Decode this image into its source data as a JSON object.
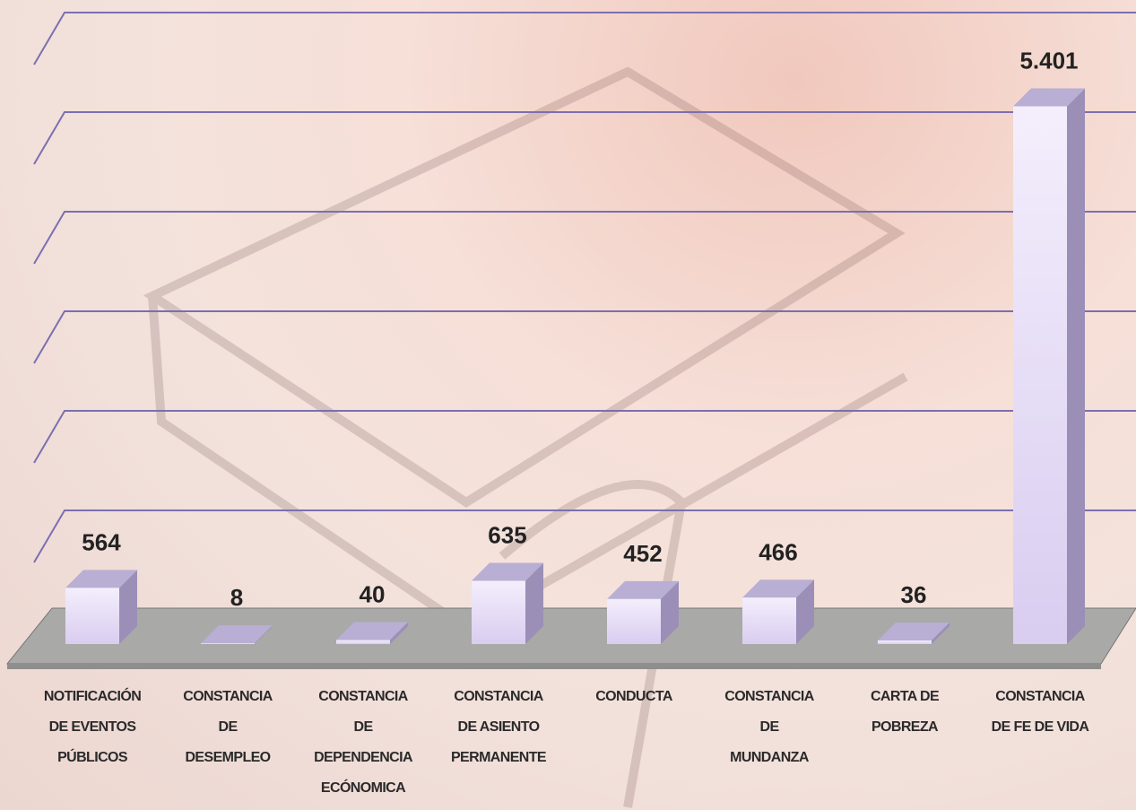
{
  "chart_data": {
    "type": "bar3d",
    "categories": [
      "NOTIFICACIÓN\nDE EVENTOS\nPÚBLICOS",
      "CONSTANCIA\nDE\nDESEMPLEO",
      "CONSTANCIA\nDE\nDEPENDENCIA\nECÓNOMICA",
      "CONSTANCIA\nDE ASIENTO\nPERMANENTE",
      "CONDUCTA",
      "CONSTANCIA\nDE\nMUNDANZA",
      "CARTA DE\nPOBREZA",
      "CONSTANCIA\nDE FE DE VIDA"
    ],
    "values": [
      564,
      8,
      40,
      635,
      452,
      466,
      36,
      5401
    ],
    "value_labels": [
      "564",
      "8",
      "40",
      "635",
      "452",
      "466",
      "36",
      "5.401"
    ],
    "color": "#e6dcf5",
    "ylim": [
      0,
      6000
    ],
    "yticks": [
      0,
      1000,
      2000,
      3000,
      4000,
      5000,
      6000
    ],
    "show_tick_labels": false,
    "grid": true,
    "grid_color": "#7b6fb0"
  }
}
